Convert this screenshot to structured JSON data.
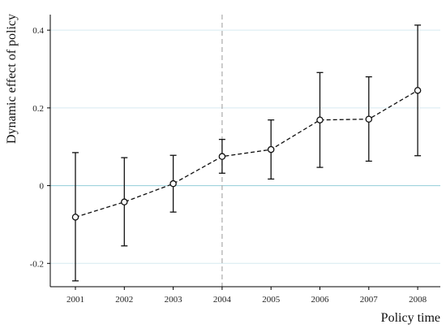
{
  "chart_data": {
    "type": "line",
    "title": "",
    "xlabel": "Policy time",
    "ylabel": "Dynamic effect of policy",
    "x": [
      "2001",
      "2002",
      "2003",
      "2004",
      "2005",
      "2006",
      "2007",
      "2008"
    ],
    "series": [
      {
        "values": [
          -0.081,
          -0.042,
          0.005,
          0.075,
          0.093,
          0.169,
          0.171,
          0.245
        ],
        "ci_lower": [
          -0.245,
          -0.155,
          -0.068,
          0.032,
          0.017,
          0.047,
          0.063,
          0.077
        ],
        "ci_upper": [
          0.085,
          0.072,
          0.078,
          0.119,
          0.169,
          0.291,
          0.28,
          0.413
        ]
      }
    ],
    "xticks": [
      "2001",
      "2002",
      "2003",
      "2004",
      "2005",
      "2006",
      "2007",
      "2008"
    ],
    "yticks": [
      -0.2,
      0,
      0.2,
      0.4
    ],
    "ytick_labels": [
      "-0.2",
      "0",
      "0.2",
      "0.4"
    ],
    "ylim": [
      -0.26,
      0.44
    ],
    "reference_vline": "2004",
    "reference_hline": 0,
    "grid": true,
    "colors": {
      "grid": "#d6eaf0",
      "zero_line": "#9fd3dd",
      "vline": "#aaaaaa",
      "series": "#111111",
      "axis": "#000000"
    }
  }
}
